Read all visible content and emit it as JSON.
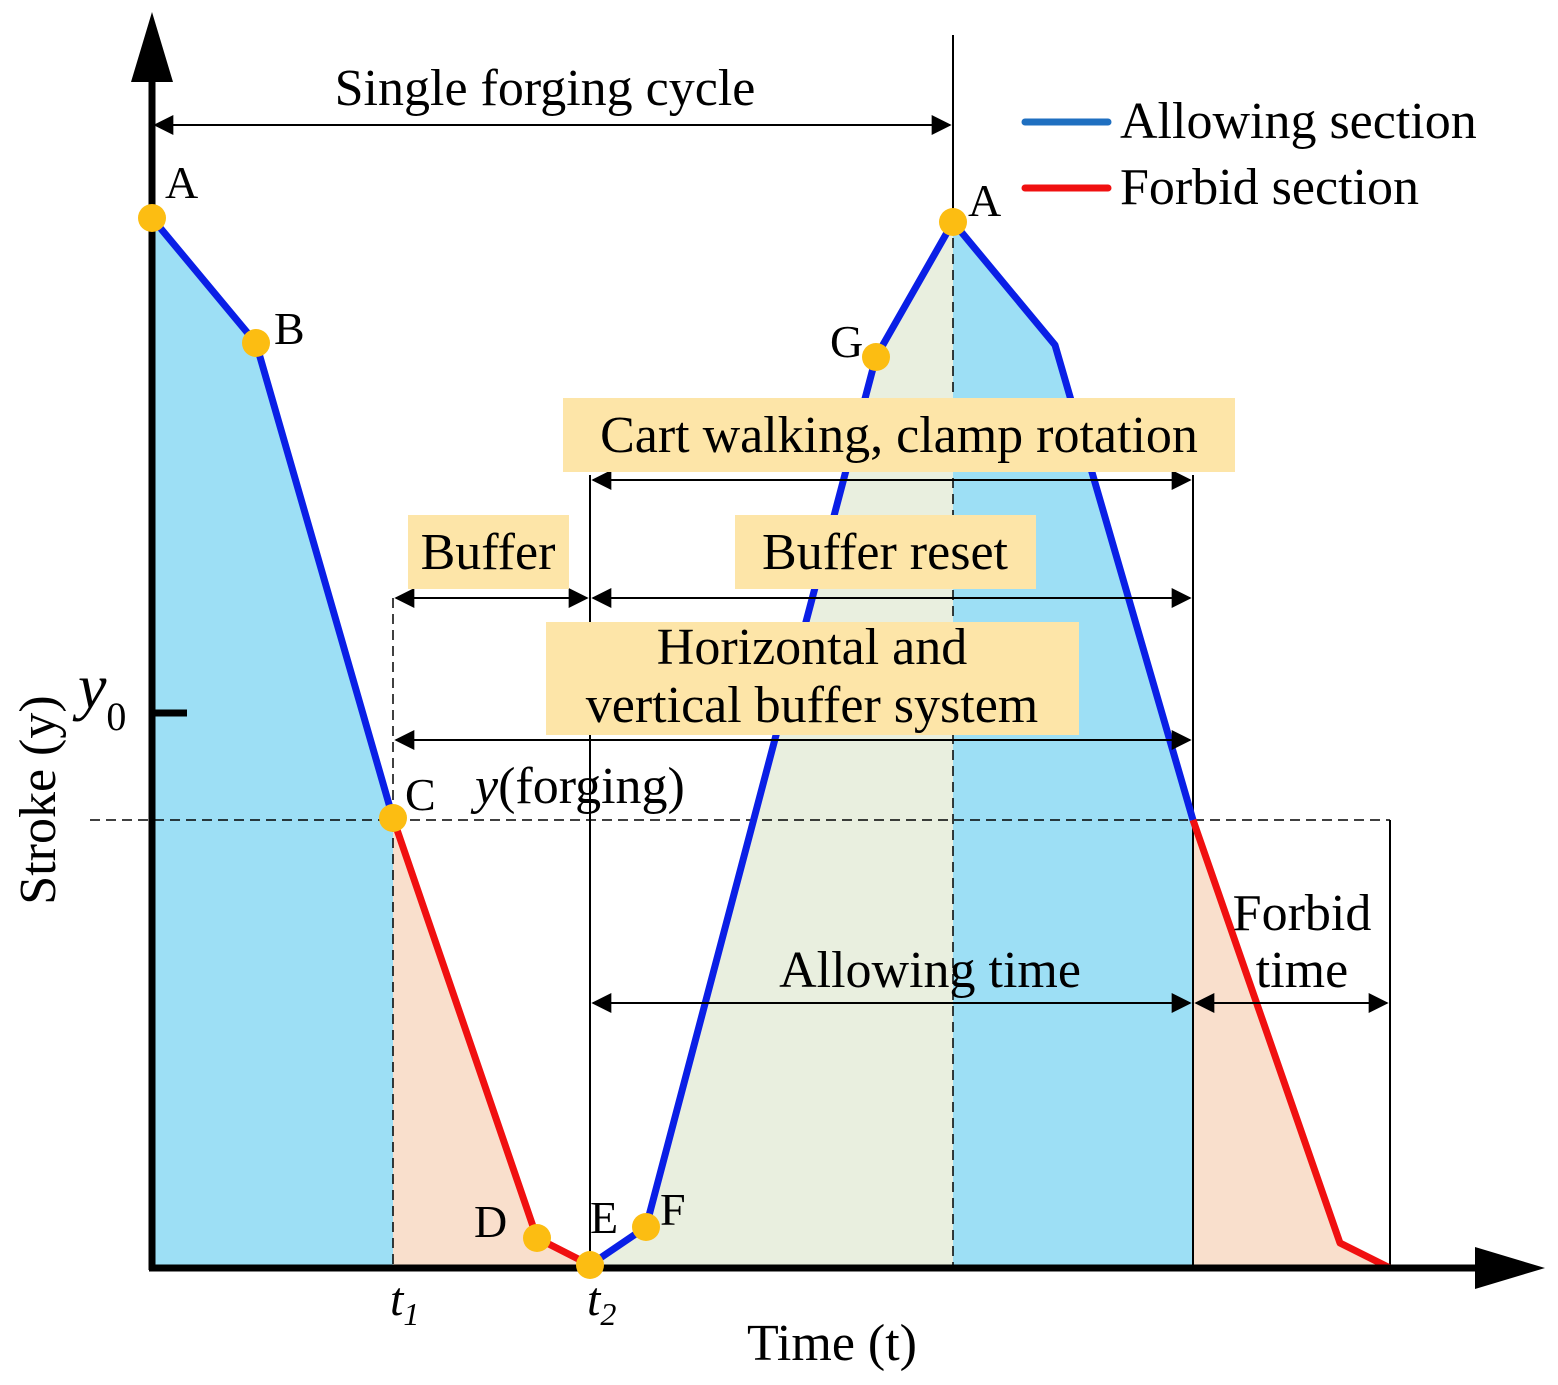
{
  "axes": {
    "y_label": "Stroke (y)",
    "x_label": "Time (t)",
    "y0_symbol": "y",
    "y0_subscript": "0",
    "t1_symbol": "t",
    "t1_subscript": "1",
    "t2_symbol": "t",
    "t2_subscript": "2"
  },
  "points": {
    "A1": "A",
    "B": "B",
    "C": "C",
    "D": "D",
    "E": "E",
    "F": "F",
    "G": "G",
    "A2": "A"
  },
  "annotations": {
    "single_cycle": "Single forging cycle",
    "cart_walking": "Cart walking, clamp rotation",
    "buffer": "Buffer",
    "buffer_reset": "Buffer reset",
    "hv_buffer_line1": "Horizontal and",
    "hv_buffer_line2": "vertical buffer system",
    "y_forging_sym": "y",
    "y_forging_rest": "(forging)",
    "allowing_time": "Allowing time",
    "forbid_time_line1": "Forbid",
    "forbid_time_line2": "time"
  },
  "legend": {
    "allowing": "Allowing section",
    "forbid": "Forbid section"
  },
  "colors": {
    "allowing_line": "#0a1fe6",
    "forbid_line": "#f01010",
    "legend_allowing": "#1f6fc0",
    "allowing_fill": "#9ddff5",
    "forbid_fill": "#f9dfcc",
    "middle_fill": "#e9efdf",
    "point_fill": "#fcbd12",
    "label_box": "#fde5a8"
  }
}
